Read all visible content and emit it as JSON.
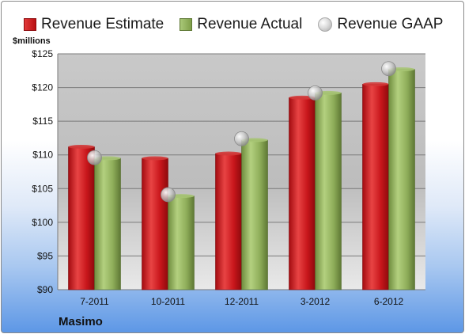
{
  "legend": {
    "estimate": "Revenue Estimate",
    "actual": "Revenue Actual",
    "gaap": "Revenue GAAP"
  },
  "unit_label": "$millions",
  "company": "Masimo",
  "colors": {
    "estimate": "#c8161b",
    "actual": "#8fae5a",
    "gaap": "#bfbfbf"
  },
  "chart_data": {
    "type": "bar",
    "categories": [
      "7-2011",
      "10-2011",
      "12-2011",
      "3-2012",
      "6-2012"
    ],
    "series": [
      {
        "name": "Revenue Estimate",
        "values": [
          111.2,
          109.5,
          110.2,
          118.5,
          120.5
        ]
      },
      {
        "name": "Revenue Actual",
        "values": [
          109.5,
          103.9,
          112.2,
          119.2,
          122.7
        ]
      },
      {
        "name": "Revenue GAAP",
        "values": [
          109.6,
          104.1,
          112.4,
          119.2,
          122.8
        ]
      }
    ],
    "ylabel": "$millions",
    "ylim": [
      90,
      125
    ],
    "yticks": [
      "$90",
      "$95",
      "$100",
      "$105",
      "$110",
      "$115",
      "$120",
      "$125"
    ],
    "grid": true,
    "legend_position": "top"
  }
}
